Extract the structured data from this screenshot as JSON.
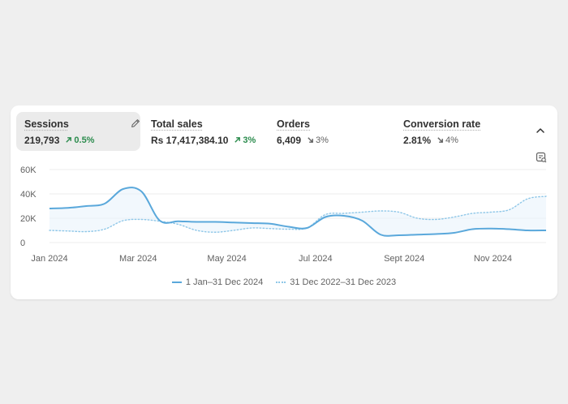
{
  "metrics": [
    {
      "label": "Sessions",
      "value": "219,793",
      "change": "0.5%",
      "direction": "up",
      "selected": true
    },
    {
      "label": "Total sales",
      "value": "Rs 17,417,384.10",
      "change": "3%",
      "direction": "up",
      "selected": false
    },
    {
      "label": "Orders",
      "value": "6,409",
      "change": "3%",
      "direction": "down",
      "selected": false
    },
    {
      "label": "Conversion rate",
      "value": "2.81%",
      "change": "4%",
      "direction": "down",
      "selected": false
    }
  ],
  "icons": {
    "edit": "pencil-icon",
    "collapse": "chevron-up-icon",
    "chart_settings": "chart-settings-icon"
  },
  "colors": {
    "current_series": "#5aa8db",
    "previous_series": "#8fc7e8",
    "positive_change": "#2c8c4e",
    "neutral_change": "#616161",
    "selected_metric_bg": "#ebebeb"
  },
  "chart_data": {
    "type": "line",
    "y_ticks": [
      "60K",
      "40K",
      "20K",
      "0"
    ],
    "ylim": [
      0,
      60000
    ],
    "x_tick_labels": [
      "Jan 2024",
      "Mar 2024",
      "May 2024",
      "Jul 2024",
      "Sept 2024",
      "Nov 2024"
    ],
    "grid": true,
    "legend_position": "bottom",
    "series": [
      {
        "name": "1 Jan–31 Dec 2024",
        "style": "solid",
        "values": [
          28000,
          28500,
          30000,
          32000,
          44000,
          42000,
          18000,
          17500,
          17000,
          17000,
          16500,
          16000,
          15500,
          13000,
          12000,
          21000,
          22000,
          18000,
          6500,
          6000,
          6500,
          7000,
          8000,
          11000,
          11500,
          11000,
          10000,
          10000
        ]
      },
      {
        "name": "31 Dec 2022–31 Dec 2023",
        "style": "dotted",
        "values": [
          10000,
          9500,
          9000,
          11000,
          18000,
          19000,
          17500,
          15000,
          10000,
          8500,
          10000,
          12000,
          11500,
          11000,
          12000,
          23000,
          24000,
          25000,
          26000,
          25000,
          20000,
          19000,
          21000,
          24000,
          25000,
          27000,
          36000,
          38000
        ]
      }
    ]
  },
  "legend": {
    "current_label": "1 Jan–31 Dec 2024",
    "previous_label": "31 Dec 2022–31 Dec 2023"
  }
}
